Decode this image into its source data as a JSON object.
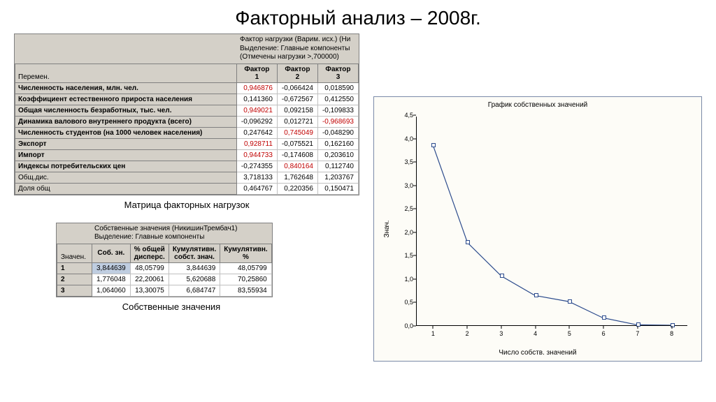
{
  "title": "Факторный анализ – 2008г.",
  "loadings": {
    "header_lines": [
      "Фактор нагрузки (Варим. исх.) (Ни",
      "Выделение: Главные компоненты",
      "(Отмечены нагрузки >,700000)"
    ],
    "var_header": "Перемен.",
    "col_headers": [
      "Фактор\n1",
      "Фактор\n2",
      "Фактор\n3"
    ],
    "rows": [
      {
        "label": "Численность населения, млн. чел.",
        "bold": true,
        "v": [
          "0,946876",
          "-0,066424",
          "0,018590"
        ],
        "sig": [
          true,
          false,
          false
        ]
      },
      {
        "label": "Коэффициент естественного прироста населения",
        "bold": true,
        "v": [
          "0,141360",
          "-0,672567",
          "0,412550"
        ],
        "sig": [
          false,
          false,
          false
        ]
      },
      {
        "label": "Общая численность безработных, тыс. чел.",
        "bold": true,
        "v": [
          "0,949021",
          "0,092158",
          "-0,109833"
        ],
        "sig": [
          true,
          false,
          false
        ]
      },
      {
        "label": "Динамика валового внутреннего продукта (всего)",
        "bold": true,
        "v": [
          "-0,096292",
          "0,012721",
          "-0,968693"
        ],
        "sig": [
          false,
          false,
          true
        ]
      },
      {
        "label": "Численность студентов (на 1000 человек населения)",
        "bold": true,
        "v": [
          "0,247642",
          "0,745049",
          "-0,048290"
        ],
        "sig": [
          false,
          true,
          false
        ]
      },
      {
        "label": "Экспорт",
        "bold": true,
        "v": [
          "0,928711",
          "-0,075521",
          "0,162160"
        ],
        "sig": [
          true,
          false,
          false
        ]
      },
      {
        "label": "Импорт",
        "bold": true,
        "v": [
          "0,944733",
          "-0,174608",
          "0,203610"
        ],
        "sig": [
          true,
          false,
          false
        ]
      },
      {
        "label": "Индексы потребительских цен",
        "bold": true,
        "v": [
          "-0,274355",
          "0,840164",
          "0,112740"
        ],
        "sig": [
          false,
          true,
          false
        ]
      }
    ],
    "footer": [
      {
        "label": "Общ.дис.",
        "v": [
          "3,718133",
          "1,762648",
          "1,203767"
        ]
      },
      {
        "label": "Доля общ",
        "v": [
          "0,464767",
          "0,220356",
          "0,150471"
        ]
      }
    ],
    "caption": "Матрица факторных нагрузок"
  },
  "eigen": {
    "header_lines": [
      "Собственные значения (НикишинТрембач1)",
      "Выделение: Главные компоненты"
    ],
    "var_header": "Значен.",
    "col_headers": [
      "Соб. зн.",
      "% общей\nдисперс.",
      "Кумулятивн.\nсобст. знач.",
      "Кумулятивн.\n%"
    ],
    "rows": [
      {
        "label": "1",
        "v": [
          "3,844639",
          "48,05799",
          "3,844639",
          "48,05799"
        ],
        "sel": 0
      },
      {
        "label": "2",
        "v": [
          "1,776048",
          "22,20061",
          "5,620688",
          "70,25860"
        ]
      },
      {
        "label": "3",
        "v": [
          "1,064060",
          "13,30075",
          "6,684747",
          "83,55934"
        ]
      }
    ],
    "caption": "Собственные значения"
  },
  "chart": {
    "title": "График собственных значений",
    "ylabel": "Знач.",
    "xlabel": "Число собств. значений",
    "ylim": [
      0,
      4.5
    ],
    "ytick_step": 0.5,
    "xvals": [
      1,
      2,
      3,
      4,
      5,
      6,
      7,
      8
    ],
    "yvals": [
      3.84,
      1.78,
      1.06,
      0.64,
      0.51,
      0.16,
      0.01,
      0.0
    ],
    "line_color": "#2b4a8c",
    "background": "#fdfcf7"
  }
}
